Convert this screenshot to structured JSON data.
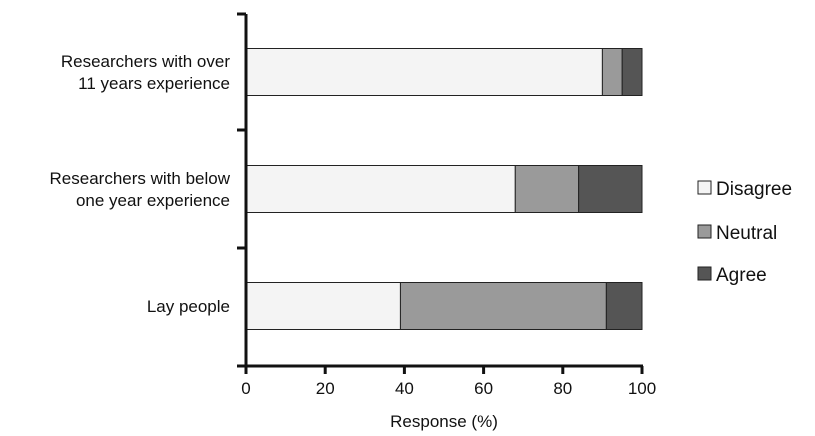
{
  "chart_data": {
    "type": "bar",
    "orientation": "horizontal",
    "stacked": true,
    "categories": [
      [
        "Researchers with over",
        "11 years experience"
      ],
      [
        "Researchers with below",
        "one year experience"
      ],
      [
        "Lay people"
      ]
    ],
    "series": [
      {
        "name": "Disagree",
        "values": [
          90,
          68,
          39
        ],
        "color": "#f4f4f4"
      },
      {
        "name": "Neutral",
        "values": [
          5,
          16,
          52
        ],
        "color": "#9a9a9a"
      },
      {
        "name": "Agree",
        "values": [
          5,
          16,
          9
        ],
        "color": "#555555"
      }
    ],
    "xlabel": "Response (%)",
    "xlim": [
      0,
      100
    ],
    "xticks": [
      "0",
      "20",
      "40",
      "60",
      "80",
      "100"
    ],
    "legend_position": "right",
    "grid": false
  }
}
